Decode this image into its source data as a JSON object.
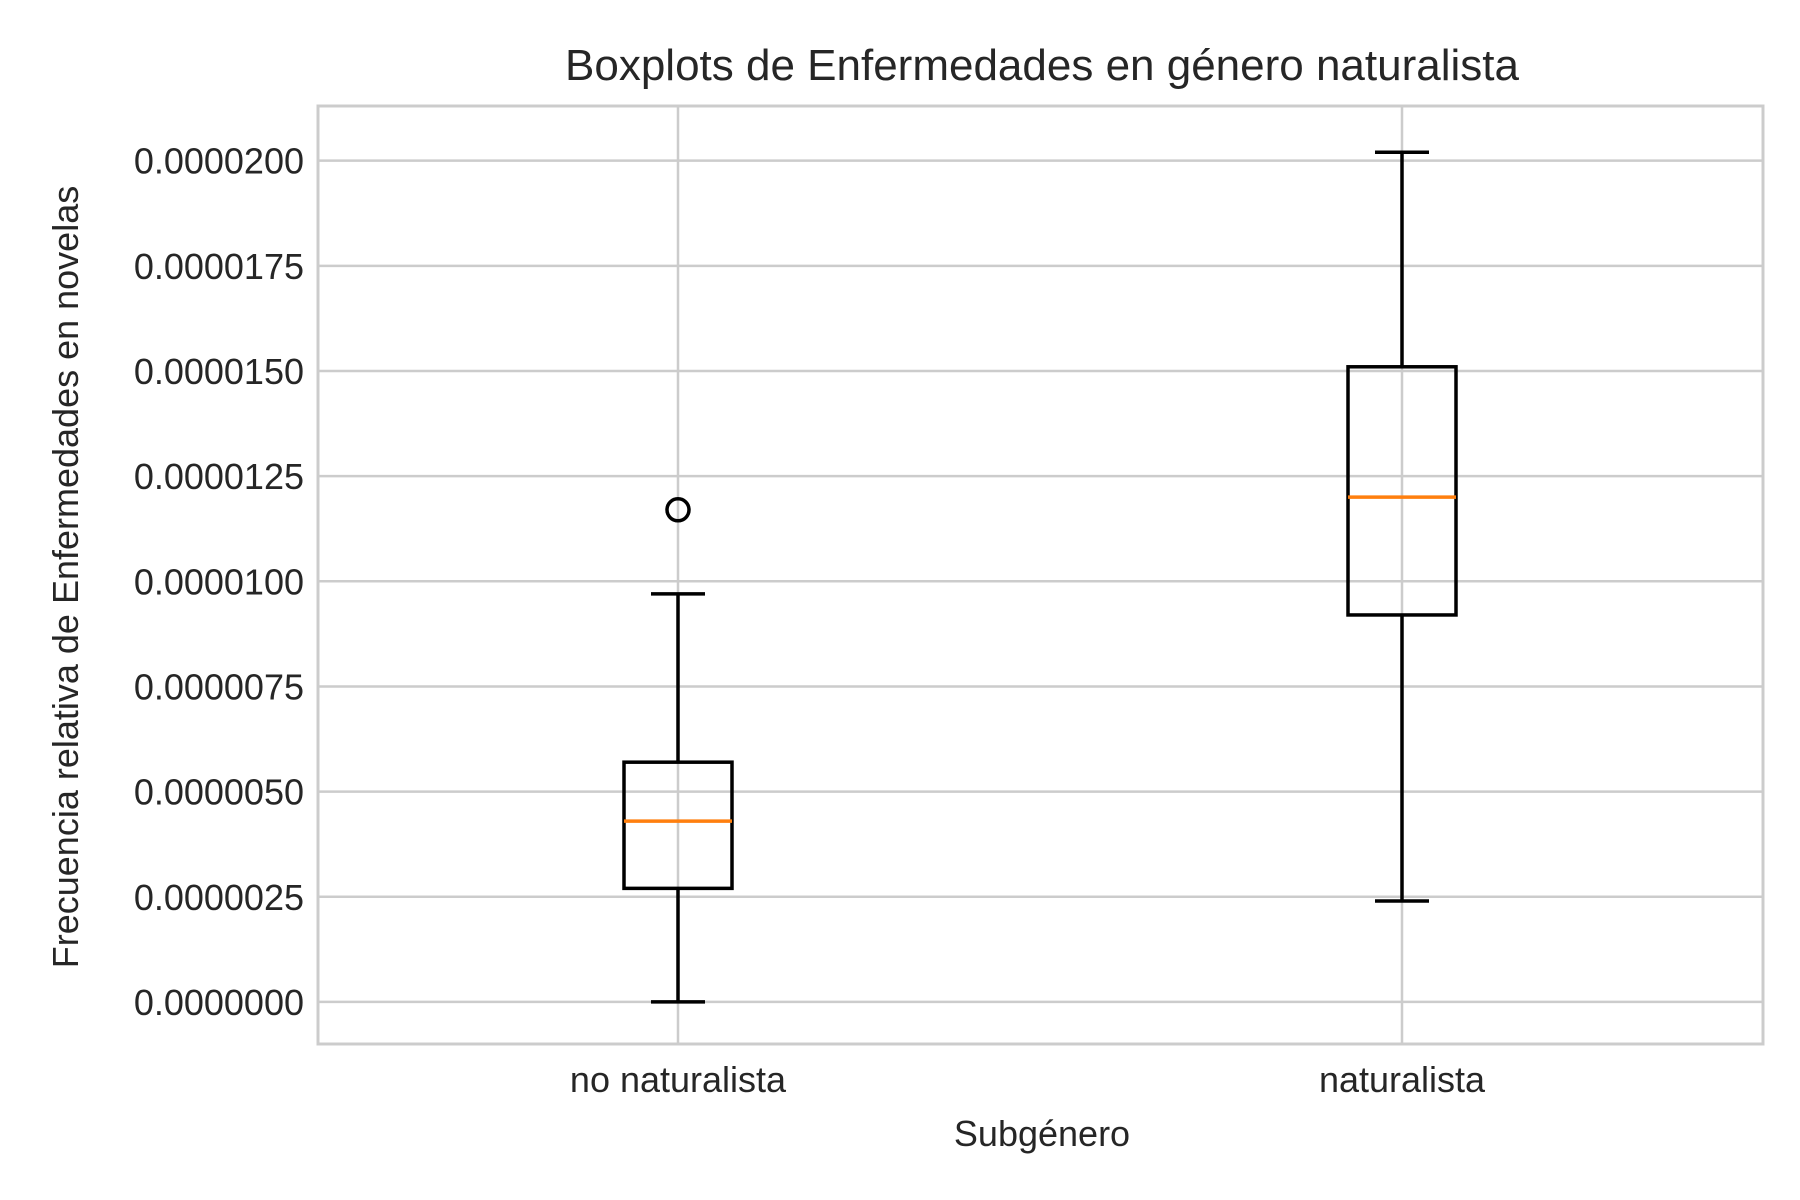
{
  "chart_data": {
    "type": "boxplot",
    "title": "Boxplots de Enfermedades en género naturalista",
    "xlabel": "Subgénero",
    "ylabel": "Frecuencia relativa de Enfermedades en novelas",
    "categories": [
      "no naturalista",
      "naturalista"
    ],
    "ylim": [
      -1e-06,
      2.13e-05
    ],
    "yticks": [
      0.0,
      2.5e-06,
      5e-06,
      7.5e-06,
      1e-05,
      1.25e-05,
      1.5e-05,
      1.75e-05,
      2e-05
    ],
    "ytick_labels": [
      "0.0000000",
      "0.0000025",
      "0.0000050",
      "0.0000075",
      "0.0000100",
      "0.0000125",
      "0.0000150",
      "0.0000175",
      "0.0000200"
    ],
    "grid": true,
    "colors": {
      "box": "#000000",
      "median": "#ff7f0e",
      "grid": "#cccccc"
    },
    "boxes": [
      {
        "label": "no naturalista",
        "whisker_low": 0.0,
        "q1": 2.7e-06,
        "median": 4.3e-06,
        "q3": 5.7e-06,
        "whisker_high": 9.7e-06,
        "outliers": [
          1.17e-05
        ]
      },
      {
        "label": "naturalista",
        "whisker_low": 2.4e-06,
        "q1": 9.2e-06,
        "median": 1.2e-05,
        "q3": 1.51e-05,
        "whisker_high": 2.02e-05,
        "outliers": []
      }
    ]
  }
}
